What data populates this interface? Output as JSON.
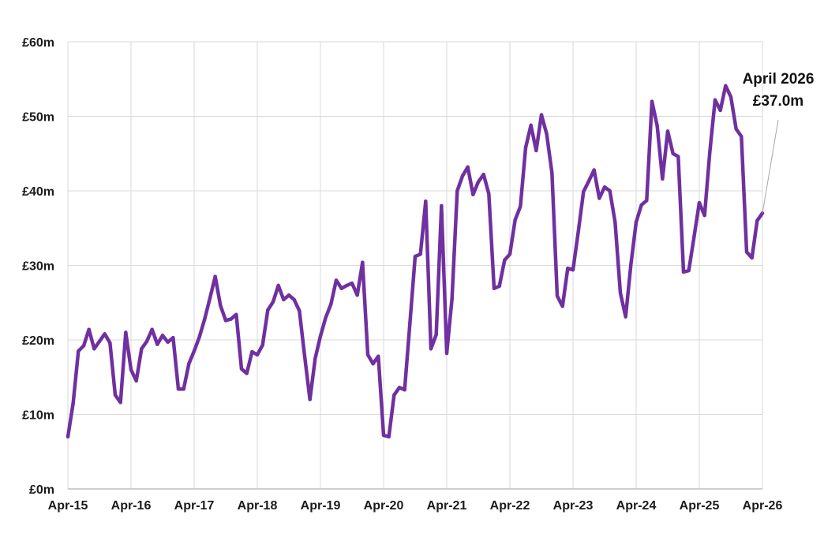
{
  "chart_data": {
    "type": "line",
    "title": "",
    "xlabel": "",
    "ylabel": "",
    "ylim": [
      0,
      60
    ],
    "yticks": [
      0,
      10,
      20,
      30,
      40,
      50,
      60
    ],
    "ytick_labels": [
      "£0m",
      "£10m",
      "£20m",
      "£30m",
      "£40m",
      "£50m",
      "£60m"
    ],
    "xtick_labels": [
      "Apr-15",
      "Apr-16",
      "Apr-17",
      "Apr-18",
      "Apr-19",
      "Apr-20",
      "Apr-21",
      "Apr-22",
      "Apr-23",
      "Apr-24",
      "Apr-25",
      "Apr-26"
    ],
    "x_start": "2015-04",
    "x_end": "2026-04",
    "grid": true,
    "colors": {
      "series": "#7030a0",
      "grid": "#d9d9d9",
      "axis": "#bfbfbf",
      "leader": "#a6a6a6"
    },
    "series": [
      {
        "values": [
          7.0,
          11.5,
          18.5,
          19.2,
          21.4,
          18.8,
          19.8,
          20.8,
          19.6,
          12.6,
          11.6,
          21.0,
          16.0,
          14.5,
          18.8,
          19.8,
          21.4,
          19.4,
          20.6,
          19.7,
          20.3,
          13.4,
          13.4,
          16.8,
          18.5,
          20.4,
          22.8,
          25.6,
          28.5,
          24.6,
          22.6,
          22.8,
          23.4,
          16.1,
          15.5,
          18.4,
          18.0,
          19.3,
          24.0,
          25.1,
          27.3,
          25.4,
          26.0,
          25.4,
          23.9,
          17.8,
          12.0,
          17.5,
          20.5,
          23.0,
          24.8,
          28.0,
          26.9,
          27.3,
          27.6,
          26.0,
          30.4,
          18.0,
          16.8,
          17.8,
          7.2,
          7.0,
          12.6,
          13.6,
          13.3,
          22.2,
          31.2,
          31.5,
          38.6,
          18.8,
          20.7,
          38.0,
          18.2,
          25.5,
          40.0,
          42.0,
          43.2,
          39.5,
          41.2,
          42.2,
          39.6,
          26.9,
          27.2,
          30.7,
          31.5,
          36.1,
          37.9,
          45.8,
          48.8,
          45.4,
          50.2,
          47.6,
          42.4,
          25.9,
          24.5,
          29.6,
          29.4,
          34.5,
          39.9,
          41.3,
          42.8,
          39.0,
          40.5,
          40.0,
          35.8,
          26.3,
          23.1,
          30.1,
          35.8,
          38.1,
          38.7,
          52.0,
          48.7,
          41.6,
          48.0,
          45.0,
          44.6,
          29.1,
          29.3,
          33.8,
          38.4,
          36.7,
          45.2,
          52.2,
          50.8,
          54.1,
          52.6,
          48.3,
          47.3,
          31.8,
          31.0,
          36.0,
          37.0
        ]
      }
    ],
    "annotation": {
      "line1": "April 2026",
      "line2": "£37.0m",
      "x": "2026-04",
      "y": 37.0
    }
  }
}
